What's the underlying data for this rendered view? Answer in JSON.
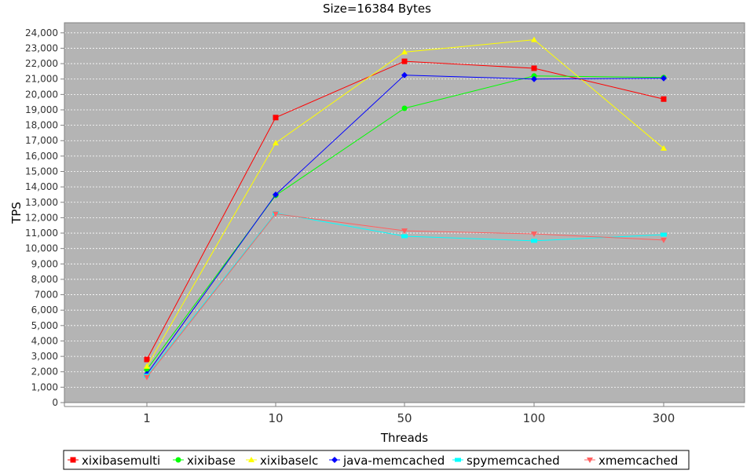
{
  "chart_data": {
    "type": "line",
    "title": "Size=16384 Bytes",
    "xlabel": "Threads",
    "ylabel": "TPS",
    "categories": [
      "1",
      "10",
      "50",
      "100",
      "300"
    ],
    "ylim": [
      0,
      24500
    ],
    "yticks": [
      0,
      1000,
      2000,
      3000,
      4000,
      5000,
      6000,
      7000,
      8000,
      9000,
      10000,
      11000,
      12000,
      13000,
      14000,
      15000,
      16000,
      17000,
      18000,
      19000,
      20000,
      21000,
      22000,
      23000,
      24000
    ],
    "ytick_labels": [
      "0",
      "1,000",
      "2,000",
      "3,000",
      "4,000",
      "5,000",
      "6,000",
      "7000",
      "8,000",
      "9,000",
      "10,000",
      "11,000",
      "12,000",
      "13,000",
      "14,000",
      "15,000",
      "16,000",
      "17,000",
      "18,000",
      "19,000",
      "20,000",
      "21,000",
      "22,000",
      "23,000",
      "24,000"
    ],
    "grid": true,
    "legend_position": "bottom",
    "plot_background": "#b4b4b4",
    "series": [
      {
        "name": "xixibasemulti",
        "color": "#ff0000",
        "marker": "square",
        "values": [
          2800,
          18500,
          22150,
          21700,
          19700
        ]
      },
      {
        "name": "xixibase",
        "color": "#00ff00",
        "marker": "circle",
        "values": [
          2150,
          13450,
          19100,
          21200,
          21100
        ]
      },
      {
        "name": "xixibaselc",
        "color": "#ffff00",
        "marker": "triangle-up",
        "values": [
          2350,
          16850,
          22750,
          23550,
          16500
        ]
      },
      {
        "name": "java-memcached",
        "color": "#0000ff",
        "marker": "diamond",
        "values": [
          1850,
          13500,
          21250,
          21000,
          21050
        ]
      },
      {
        "name": "spymemcached",
        "color": "#00ffff",
        "marker": "rect-h",
        "values": [
          1750,
          12300,
          10800,
          10500,
          10900
        ]
      },
      {
        "name": "xmemcached",
        "color": "#ff6060",
        "marker": "triangle-down",
        "values": [
          1650,
          12250,
          11150,
          10950,
          10550
        ]
      }
    ]
  }
}
